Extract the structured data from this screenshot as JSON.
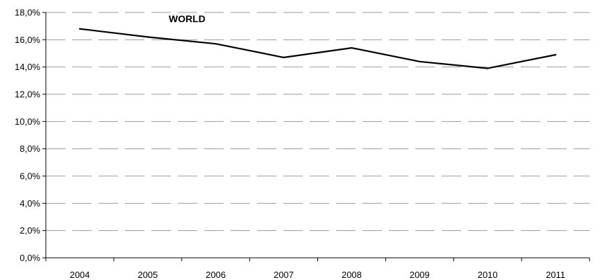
{
  "chart_data": {
    "type": "line",
    "title": "WORLD",
    "xlabel": "",
    "ylabel": "",
    "categories": [
      "2004",
      "2005",
      "2006",
      "2007",
      "2008",
      "2009",
      "2010",
      "2011"
    ],
    "series": [
      {
        "values": [
          16.8,
          16.2,
          15.7,
          14.7,
          15.4,
          14.4,
          13.9,
          14.9
        ]
      }
    ],
    "ylim": [
      0,
      18
    ],
    "ytick_step": 2,
    "ytick_labels": [
      "0,0%",
      "2,0%",
      "4,0%",
      "6,0%",
      "8,0%",
      "10,0%",
      "12,0%",
      "14,0%",
      "16,0%",
      "18,0%"
    ],
    "grid": true,
    "grid_style": "dashed",
    "legend": "none",
    "line_color": "#000000",
    "grid_color": "#9a9a9a",
    "axis_color": "#000000"
  }
}
